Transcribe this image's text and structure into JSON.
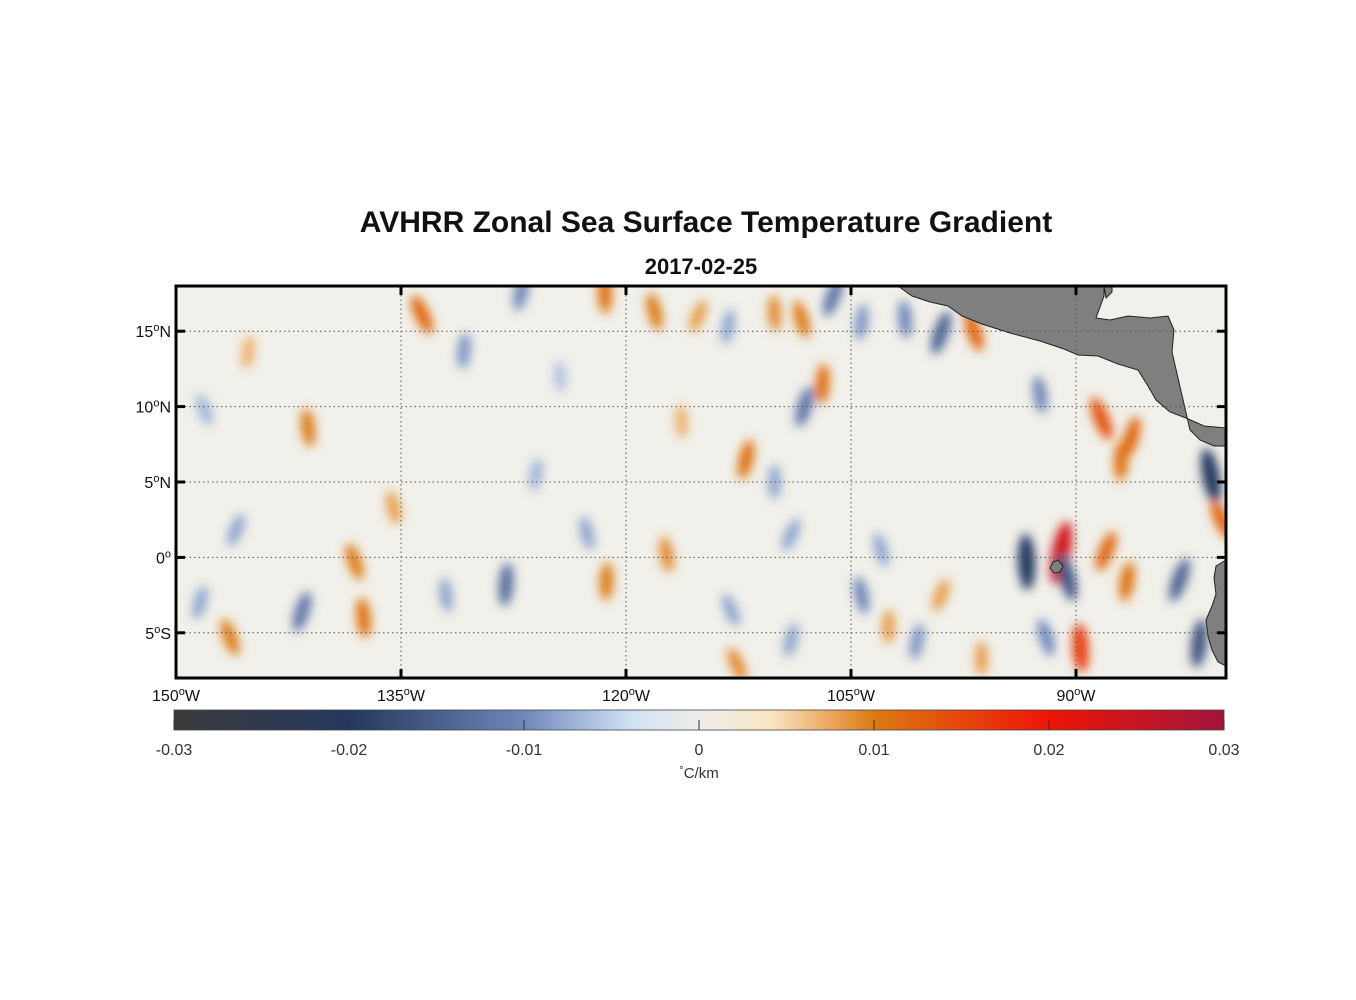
{
  "title": "AVHRR Zonal Sea Surface Temperature Gradient",
  "date": "2017-02-25",
  "map": {
    "lon_range": [
      -150,
      -80
    ],
    "lat_range": [
      -8,
      18
    ],
    "lon_ticks": [
      {
        "value": -150,
        "deg": "150",
        "hemi": "W"
      },
      {
        "value": -135,
        "deg": "135",
        "hemi": "W"
      },
      {
        "value": -120,
        "deg": "120",
        "hemi": "W"
      },
      {
        "value": -105,
        "deg": "105",
        "hemi": "W"
      },
      {
        "value": -90,
        "deg": "90",
        "hemi": "W"
      }
    ],
    "lat_ticks": [
      {
        "value": 15,
        "deg": "15",
        "hemi": "N"
      },
      {
        "value": 10,
        "deg": "10",
        "hemi": "N"
      },
      {
        "value": 5,
        "deg": "5",
        "hemi": "N"
      },
      {
        "value": 0,
        "deg": "0",
        "hemi": ""
      },
      {
        "value": -5,
        "deg": "5",
        "hemi": "S"
      }
    ],
    "land_color": "#7f7f7f",
    "features": [
      {
        "lon": -133.6,
        "lat": 16.1,
        "v": 0.012
      },
      {
        "lon": -127.0,
        "lat": 17.6,
        "v": -0.01
      },
      {
        "lon": -121.4,
        "lat": 17.5,
        "v": 0.011
      },
      {
        "lon": -118.1,
        "lat": 16.3,
        "v": 0.01
      },
      {
        "lon": -115.2,
        "lat": 16.0,
        "v": 0.008
      },
      {
        "lon": -113.2,
        "lat": 15.3,
        "v": -0.008
      },
      {
        "lon": -110.1,
        "lat": 16.2,
        "v": 0.009
      },
      {
        "lon": -108.3,
        "lat": 15.8,
        "v": 0.01
      },
      {
        "lon": -106.2,
        "lat": 17.3,
        "v": -0.012
      },
      {
        "lon": -104.3,
        "lat": 15.6,
        "v": -0.009
      },
      {
        "lon": -101.4,
        "lat": 15.8,
        "v": -0.01
      },
      {
        "lon": -96.8,
        "lat": 15.0,
        "v": 0.012
      },
      {
        "lon": -99.0,
        "lat": 14.9,
        "v": -0.014
      },
      {
        "lon": -130.8,
        "lat": 13.7,
        "v": -0.009
      },
      {
        "lon": -141.2,
        "lat": 8.6,
        "v": 0.01
      },
      {
        "lon": -148.1,
        "lat": 9.8,
        "v": -0.007
      },
      {
        "lon": -108.1,
        "lat": 10.0,
        "v": -0.012
      },
      {
        "lon": -106.9,
        "lat": 11.5,
        "v": 0.011
      },
      {
        "lon": -92.4,
        "lat": 10.8,
        "v": -0.01
      },
      {
        "lon": -88.3,
        "lat": 9.2,
        "v": 0.014
      },
      {
        "lon": -86.3,
        "lat": 8.0,
        "v": 0.012
      },
      {
        "lon": -87.0,
        "lat": 6.4,
        "v": 0.011
      },
      {
        "lon": -81.0,
        "lat": 5.4,
        "v": -0.02
      },
      {
        "lon": -80.3,
        "lat": 2.5,
        "v": 0.012
      },
      {
        "lon": -112.0,
        "lat": 6.5,
        "v": 0.011
      },
      {
        "lon": -110.1,
        "lat": 5.0,
        "v": -0.008
      },
      {
        "lon": -135.5,
        "lat": 3.3,
        "v": 0.008
      },
      {
        "lon": -109.0,
        "lat": 1.5,
        "v": -0.008
      },
      {
        "lon": -91.0,
        "lat": 0.3,
        "v": 0.024
      },
      {
        "lon": -93.3,
        "lat": -0.3,
        "v": -0.02
      },
      {
        "lon": -90.6,
        "lat": -1.3,
        "v": -0.016
      },
      {
        "lon": -88.0,
        "lat": 0.4,
        "v": 0.012
      },
      {
        "lon": -86.6,
        "lat": -1.6,
        "v": 0.011
      },
      {
        "lon": -89.7,
        "lat": -6.0,
        "v": 0.016
      },
      {
        "lon": -92.0,
        "lat": -5.3,
        "v": -0.01
      },
      {
        "lon": -83.1,
        "lat": -1.5,
        "v": -0.014
      },
      {
        "lon": -81.8,
        "lat": -5.7,
        "v": -0.016
      },
      {
        "lon": -137.5,
        "lat": -4.0,
        "v": 0.011
      },
      {
        "lon": -138.1,
        "lat": -0.3,
        "v": 0.01
      },
      {
        "lon": -141.6,
        "lat": -3.6,
        "v": -0.012
      },
      {
        "lon": -128.0,
        "lat": -1.8,
        "v": -0.013
      },
      {
        "lon": -132.0,
        "lat": -2.5,
        "v": -0.008
      },
      {
        "lon": -146.4,
        "lat": -5.3,
        "v": 0.01
      },
      {
        "lon": -148.4,
        "lat": -3.0,
        "v": -0.008
      },
      {
        "lon": -121.3,
        "lat": -1.6,
        "v": 0.01
      },
      {
        "lon": -117.3,
        "lat": 0.2,
        "v": 0.009
      },
      {
        "lon": -113.0,
        "lat": -3.5,
        "v": -0.008
      },
      {
        "lon": -109.0,
        "lat": -5.5,
        "v": -0.008
      },
      {
        "lon": -102.5,
        "lat": -4.6,
        "v": 0.008
      },
      {
        "lon": -104.3,
        "lat": -2.5,
        "v": -0.01
      },
      {
        "lon": -112.6,
        "lat": -7.1,
        "v": 0.009
      },
      {
        "lon": -100.6,
        "lat": -5.6,
        "v": -0.009
      },
      {
        "lon": -96.3,
        "lat": -6.7,
        "v": 0.008
      },
      {
        "lon": -122.6,
        "lat": 1.6,
        "v": -0.008
      },
      {
        "lon": -146.0,
        "lat": 1.8,
        "v": -0.008
      },
      {
        "lon": -126.0,
        "lat": 5.5,
        "v": -0.007
      },
      {
        "lon": -116.3,
        "lat": 9.0,
        "v": 0.007
      },
      {
        "lon": -103.0,
        "lat": 0.5,
        "v": -0.008
      },
      {
        "lon": -99.0,
        "lat": -2.5,
        "v": 0.008
      },
      {
        "lon": -145.2,
        "lat": 13.6,
        "v": 0.007
      },
      {
        "lon": -124.4,
        "lat": 12.0,
        "v": -0.006
      }
    ]
  },
  "colorbar": {
    "min": -0.03,
    "max": 0.03,
    "ticks": [
      "-0.03",
      "-0.02",
      "-0.01",
      "0",
      "0.01",
      "0.02",
      "0.03"
    ],
    "label_symbol": "°",
    "label_unit": "C/km",
    "stops": [
      {
        "v": -0.03,
        "color": "#3a3a3c"
      },
      {
        "v": -0.02,
        "color": "#24375e"
      },
      {
        "v": -0.01,
        "color": "#6f87b9"
      },
      {
        "v": -0.004,
        "color": "#cfe0f5"
      },
      {
        "v": 0,
        "color": "#eeeeea"
      },
      {
        "v": 0.004,
        "color": "#fbe6c6"
      },
      {
        "v": 0.01,
        "color": "#dc7a12"
      },
      {
        "v": 0.02,
        "color": "#f01408"
      },
      {
        "v": 0.03,
        "color": "#a0153c"
      }
    ]
  }
}
